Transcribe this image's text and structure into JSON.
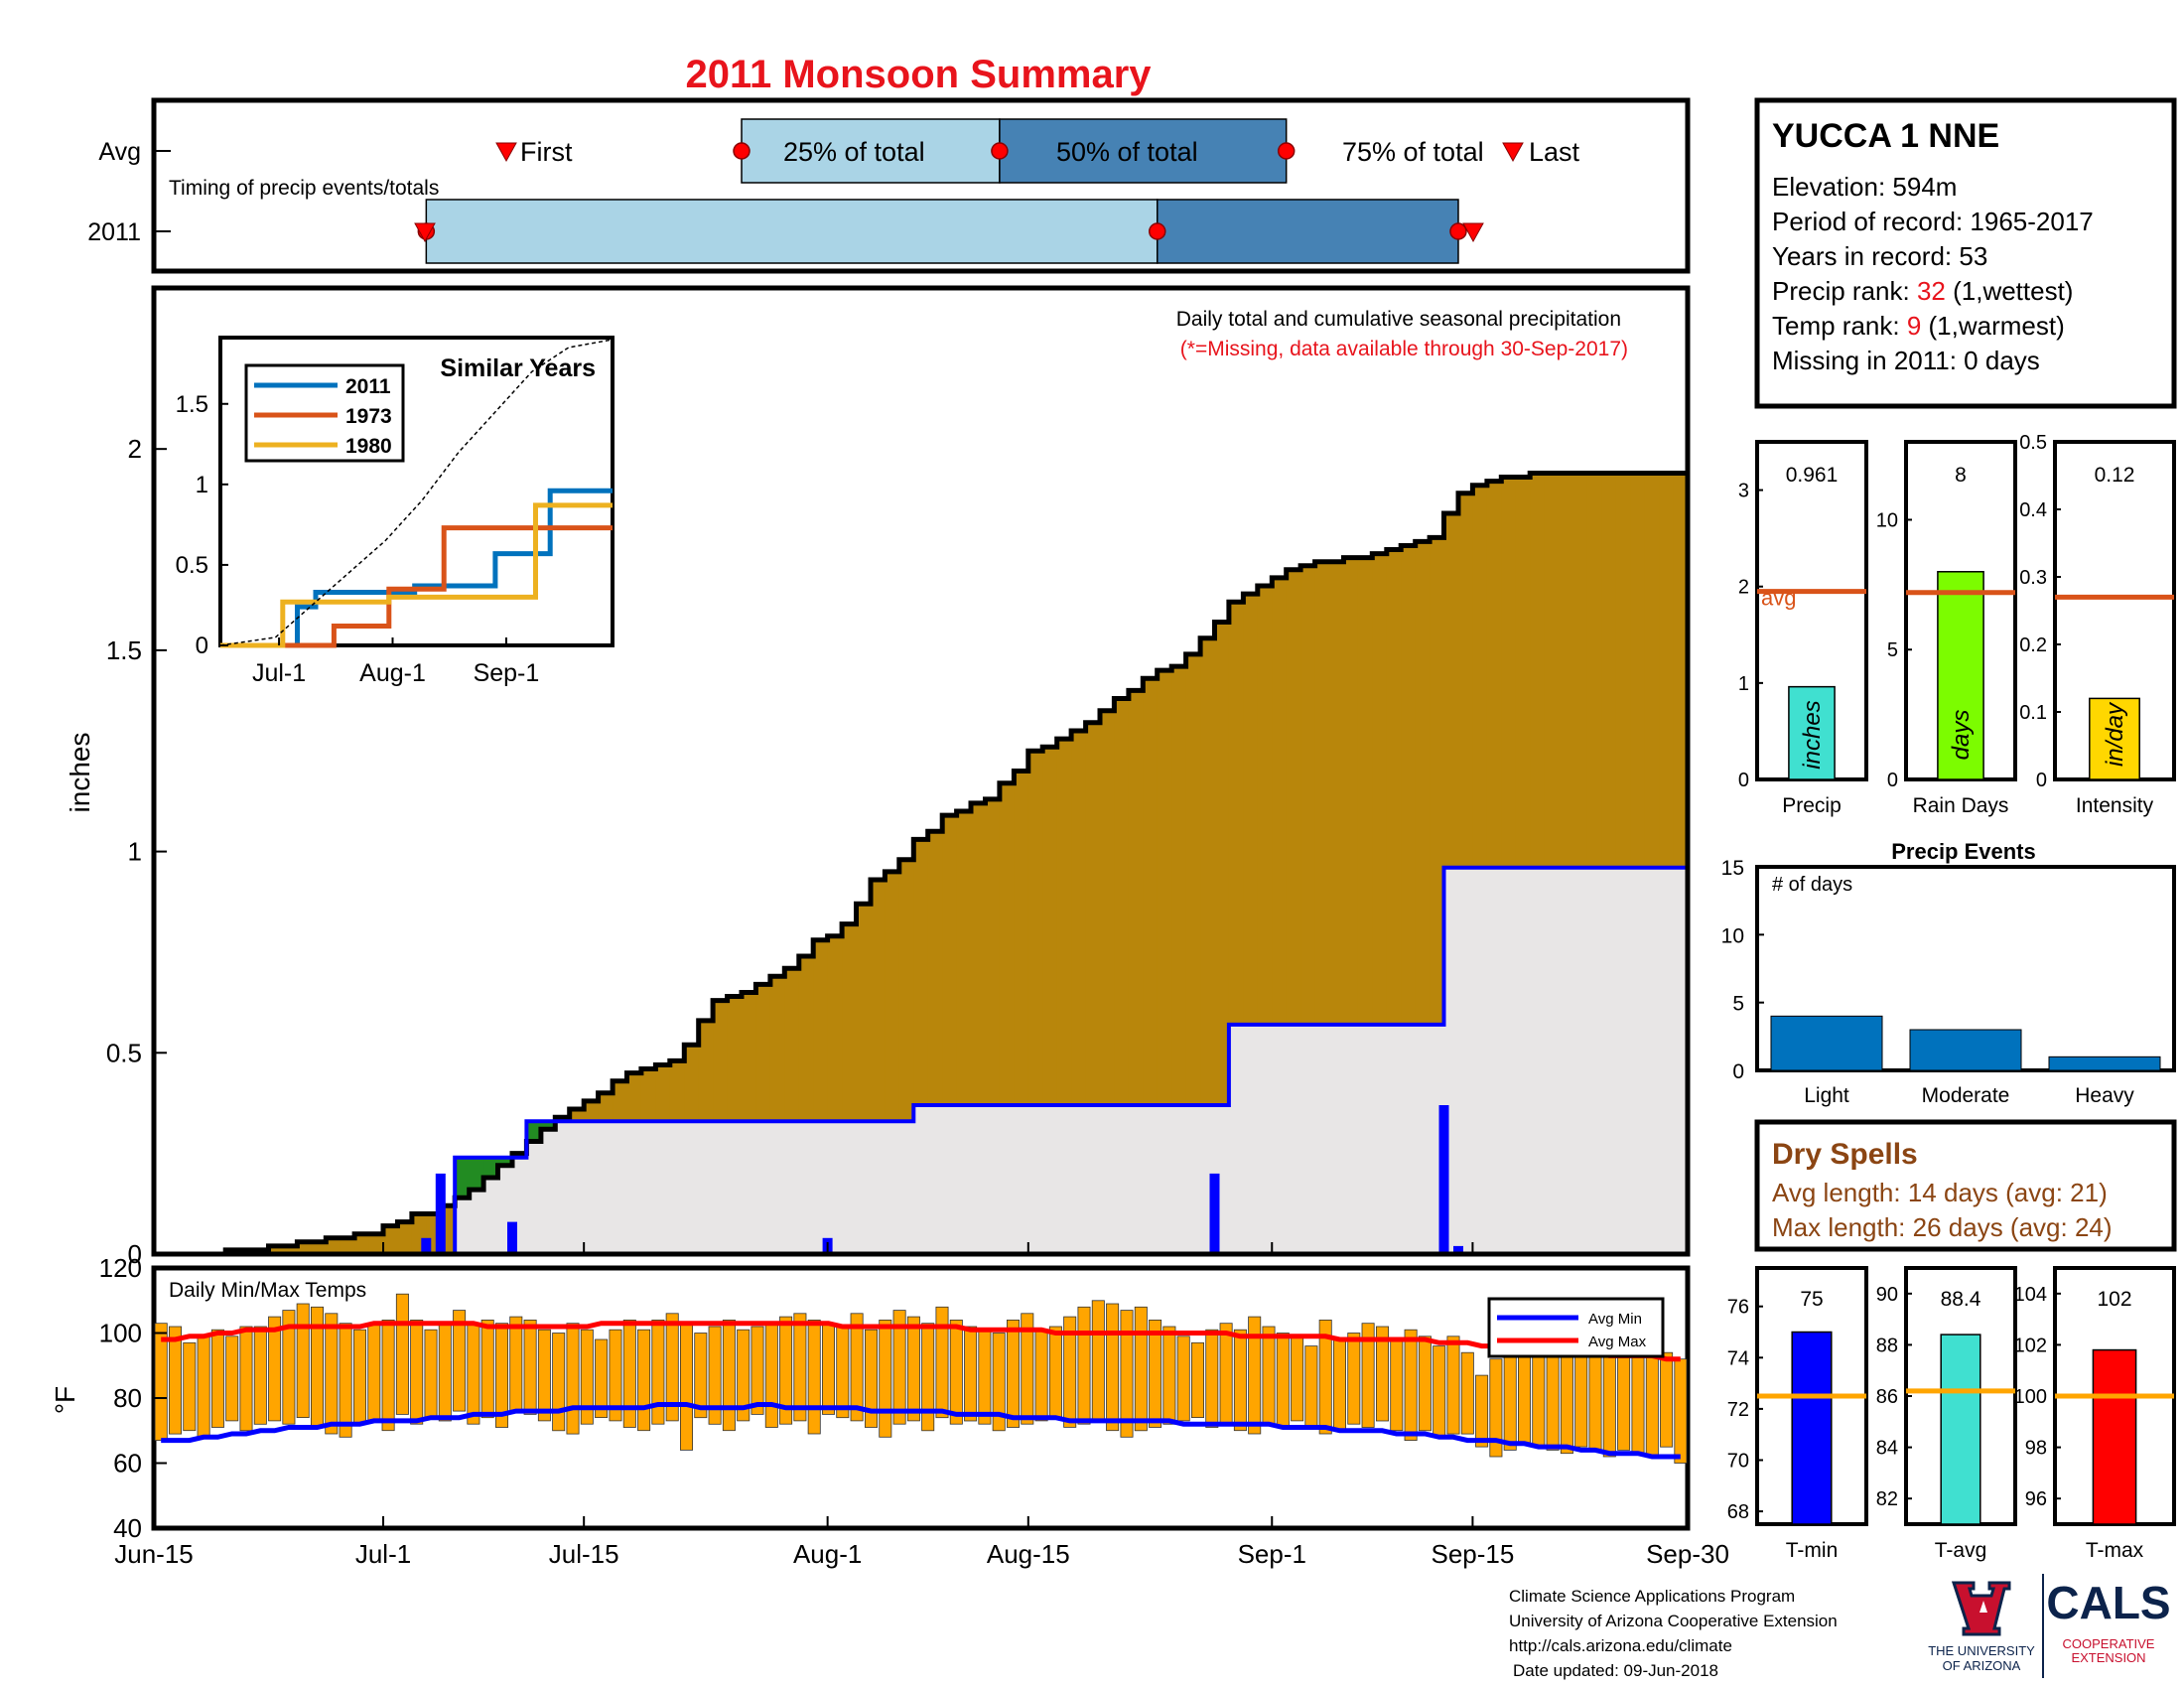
{
  "title": "2011 Monsoon Summary",
  "colors": {
    "title_red": "#e8141c",
    "light_blue": "#aad4e6",
    "dark_blue": "#4682b4",
    "brown": "#b8860b",
    "green": "#228b22",
    "light_gray": "#e8e6e6",
    "precip_blue": "#0000ff",
    "orange": "#ffa500",
    "red": "#ff0000",
    "avg_line": "#d95319",
    "dry_brown": "#8b4513"
  },
  "timing": {
    "note": "Timing of precip events/totals",
    "row_labels": [
      "Avg",
      "2011"
    ],
    "labels": {
      "first": "First",
      "p25": "25% of total",
      "p50": "50% of total",
      "p75": "75% of total",
      "last": "Last"
    },
    "avg": {
      "first": "Jul-3",
      "p25": "Jul-26",
      "p50": "Aug-13",
      "p75": "Sep-2",
      "last": "Sep-16"
    },
    "y2011": {
      "first": "Jul-3",
      "p25": "Jul-4",
      "p50": "Aug-24",
      "p75": "Sep-14",
      "last": "Sep-15"
    }
  },
  "station": {
    "name": "YUCCA 1 NNE",
    "elevation": "Elevation: 594m",
    "period": "Period of record: 1965-2017",
    "years": "Years in record: 53",
    "precip_rank_label": "Precip rank: ",
    "precip_rank_value": "32",
    "precip_rank_suffix": " (1,wettest)",
    "temp_rank_label": "Temp rank: ",
    "temp_rank_value": "9",
    "temp_rank_suffix": " (1,warmest)",
    "missing": "Missing in 2011: 0 days"
  },
  "main_chart": {
    "note1": "Daily total and cumulative seasonal precipitation",
    "note2": "(*=Missing, data available through 30-Sep-2017)",
    "ylabel": "inches",
    "ylim": [
      0,
      2.4
    ],
    "yticks": [
      "0",
      "0.5",
      "1",
      "1.5",
      "2"
    ],
    "xticks": [
      "Jun-15",
      "Jul-1",
      "Jul-15",
      "Aug-1",
      "Aug-15",
      "Sep-1",
      "Sep-15",
      "Sep-30"
    ]
  },
  "chart_data": [
    {
      "type": "area",
      "name": "cumulative-average",
      "x_start": "Jun-15",
      "x_end": "Sep-30",
      "day_numbers_from_jun15": [
        0,
        5,
        8,
        10,
        12,
        14,
        16,
        17,
        18,
        20,
        21,
        22,
        23,
        24,
        25,
        26,
        27,
        28,
        29,
        30,
        31,
        32,
        33,
        34,
        35,
        36,
        37,
        38,
        39,
        40,
        41,
        42,
        43,
        44,
        45,
        46,
        47,
        48,
        49,
        50,
        51,
        52,
        53,
        54,
        55,
        56,
        57,
        58,
        59,
        60,
        61,
        62,
        63,
        64,
        65,
        66,
        67,
        68,
        69,
        70,
        71,
        72,
        73,
        74,
        75,
        76,
        77,
        78,
        79,
        80,
        81,
        82,
        83,
        84,
        85,
        86,
        87,
        88,
        89,
        90,
        91,
        92,
        93,
        94,
        95,
        96,
        97,
        98,
        99,
        100,
        101,
        102,
        103,
        104,
        105,
        106,
        107
      ],
      "values": [
        0,
        0.01,
        0.02,
        0.03,
        0.04,
        0.05,
        0.07,
        0.08,
        0.1,
        0.12,
        0.14,
        0.16,
        0.19,
        0.22,
        0.25,
        0.28,
        0.31,
        0.34,
        0.36,
        0.38,
        0.4,
        0.43,
        0.45,
        0.46,
        0.47,
        0.48,
        0.52,
        0.58,
        0.63,
        0.64,
        0.65,
        0.67,
        0.69,
        0.71,
        0.74,
        0.78,
        0.79,
        0.82,
        0.87,
        0.93,
        0.95,
        0.98,
        1.03,
        1.05,
        1.09,
        1.1,
        1.12,
        1.13,
        1.17,
        1.2,
        1.25,
        1.26,
        1.28,
        1.3,
        1.32,
        1.35,
        1.38,
        1.4,
        1.43,
        1.45,
        1.46,
        1.49,
        1.53,
        1.57,
        1.62,
        1.64,
        1.66,
        1.68,
        1.7,
        1.71,
        1.72,
        1.72,
        1.73,
        1.73,
        1.74,
        1.75,
        1.76,
        1.77,
        1.78,
        1.84,
        1.89,
        1.91,
        1.92,
        1.93,
        1.93,
        1.94,
        1.94,
        1.94,
        1.94,
        1.94,
        1.94,
        1.94,
        1.94,
        1.94,
        1.94,
        1.94,
        1.94
      ]
    },
    {
      "type": "line",
      "name": "cumulative-2011",
      "day_numbers_from_jun15": [
        0,
        20,
        21,
        25,
        26,
        52,
        53,
        74,
        75,
        89,
        90,
        107
      ],
      "values": [
        0,
        0,
        0.24,
        0.24,
        0.33,
        0.33,
        0.37,
        0.37,
        0.57,
        0.57,
        0.96,
        0.96
      ]
    },
    {
      "type": "bar",
      "name": "daily-precip-2011",
      "day_numbers_from_jun15": [
        19,
        20,
        25,
        47,
        74,
        90,
        91
      ],
      "values": [
        0.04,
        0.2,
        0.08,
        0.04,
        0.2,
        0.37,
        0.02
      ]
    },
    {
      "type": "line",
      "name": "similar-years",
      "title": "Similar Years",
      "yticks": [
        "0",
        "0.5",
        "1",
        "1.5",
        "2"
      ],
      "xticks": [
        "Jul-1",
        "Aug-1",
        "Sep-1"
      ],
      "ylim": [
        0,
        2
      ],
      "series": [
        {
          "name": "2011",
          "color": "#0072bd",
          "x": [
            0,
            20,
            21,
            25,
            26,
            52,
            53,
            74,
            75,
            89,
            90,
            107
          ],
          "y": [
            0,
            0,
            0.24,
            0.24,
            0.33,
            0.33,
            0.37,
            0.37,
            0.57,
            0.57,
            0.96,
            0.96
          ]
        },
        {
          "name": "1973",
          "color": "#d95319",
          "x": [
            0,
            30,
            31,
            45,
            46,
            60,
            61,
            107
          ],
          "y": [
            0,
            0,
            0.12,
            0.12,
            0.35,
            0.35,
            0.73,
            0.73
          ]
        },
        {
          "name": "1980",
          "color": "#edb120",
          "x": [
            0,
            16,
            17,
            45,
            46,
            85,
            86,
            107
          ],
          "y": [
            0,
            0,
            0.27,
            0.27,
            0.3,
            0.3,
            0.87,
            0.87
          ]
        },
        {
          "name": "avg",
          "color": "#000000",
          "x": [
            0,
            15,
            25,
            35,
            45,
            55,
            65,
            75,
            85,
            95,
            107
          ],
          "y": [
            0,
            0.05,
            0.25,
            0.45,
            0.65,
            0.9,
            1.2,
            1.45,
            1.7,
            1.85,
            1.94
          ]
        }
      ]
    },
    {
      "type": "bar",
      "name": "precip-summary",
      "panels": [
        {
          "label": "Precip",
          "unit": "inches",
          "value": 0.961,
          "value_label": "0.961",
          "avg": 1.95,
          "ylim": [
            0,
            3.5
          ],
          "yticks": [
            0,
            1,
            2,
            3
          ],
          "color": "#40e0d0",
          "avg_label": "avg"
        },
        {
          "label": "Rain Days",
          "unit": "days",
          "value": 8,
          "value_label": "8",
          "avg": 7.2,
          "ylim": [
            0,
            13
          ],
          "yticks": [
            0,
            5,
            10
          ],
          "color": "#7cfc00"
        },
        {
          "label": "Intensity",
          "unit": "in/day",
          "value": 0.12,
          "value_label": "0.12",
          "avg": 0.27,
          "ylim": [
            0,
            0.5
          ],
          "yticks": [
            0,
            0.1,
            0.2,
            0.3,
            0.4,
            0.5
          ],
          "color": "#ffd700"
        }
      ]
    },
    {
      "type": "bar",
      "name": "precip-events",
      "title": "Precip Events",
      "ylabel_note": "# of days",
      "categories": [
        "Light",
        "Moderate",
        "Heavy"
      ],
      "values": [
        4,
        3,
        1
      ],
      "ylim": [
        0,
        15
      ],
      "yticks": [
        0,
        5,
        10,
        15
      ]
    },
    {
      "type": "bar",
      "name": "daily-temps",
      "title": "Daily Min/Max Temps",
      "ylabel": "°F",
      "ylim": [
        40,
        120
      ],
      "yticks": [
        40,
        60,
        80,
        100,
        120
      ],
      "legend": [
        "Avg Min",
        "Avg Max"
      ],
      "daily_max": [
        103,
        102,
        97,
        99,
        101,
        99,
        102,
        102,
        105,
        107,
        109,
        108,
        106,
        103,
        101,
        103,
        104,
        112,
        104,
        101,
        103,
        107,
        103,
        104,
        103,
        105,
        104,
        101,
        100,
        103,
        101,
        98,
        101,
        104,
        101,
        104,
        106,
        103,
        100,
        102,
        104,
        101,
        102,
        103,
        105,
        106,
        104,
        103,
        102,
        106,
        101,
        104,
        107,
        105,
        103,
        108,
        104,
        102,
        101,
        100,
        104,
        106,
        101,
        102,
        105,
        108,
        110,
        109,
        107,
        108,
        104,
        102,
        99,
        97,
        101,
        103,
        101,
        105,
        102,
        100,
        99,
        96,
        104,
        98,
        100,
        103,
        102,
        98,
        101,
        99,
        96,
        99,
        94,
        87,
        92,
        97,
        99,
        102,
        103,
        100,
        101,
        97,
        96,
        95,
        93,
        95,
        94,
        92
      ],
      "daily_min": [
        67,
        69,
        70,
        68,
        71,
        73,
        70,
        72,
        73,
        72,
        74,
        71,
        69,
        68,
        72,
        73,
        70,
        75,
        72,
        74,
        73,
        76,
        72,
        74,
        71,
        76,
        75,
        73,
        70,
        69,
        72,
        74,
        73,
        71,
        70,
        72,
        73,
        64,
        74,
        72,
        70,
        73,
        75,
        71,
        72,
        73,
        69,
        75,
        74,
        73,
        71,
        68,
        72,
        73,
        70,
        74,
        72,
        73,
        72,
        70,
        71,
        72,
        73,
        74,
        71,
        72,
        73,
        70,
        68,
        70,
        71,
        72,
        73,
        74,
        71,
        72,
        70,
        69,
        72,
        71,
        73,
        71,
        69,
        70,
        72,
        71,
        73,
        70,
        67,
        70,
        68,
        69,
        69,
        65,
        62,
        64,
        66,
        65,
        64,
        63,
        65,
        64,
        62,
        64,
        63,
        62,
        65,
        60
      ],
      "avg_max": [
        98,
        98,
        99,
        99,
        100,
        100,
        101,
        101,
        101,
        102,
        102,
        102,
        102,
        102,
        102,
        103,
        103,
        103,
        103,
        103,
        103,
        103,
        103,
        102,
        102,
        102,
        102,
        102,
        102,
        102,
        102,
        103,
        103,
        103,
        103,
        103,
        103,
        103,
        103,
        103,
        103,
        103,
        103,
        103,
        103,
        103,
        103,
        103,
        102,
        102,
        102,
        102,
        102,
        102,
        102,
        102,
        102,
        101,
        101,
        101,
        101,
        101,
        101,
        100,
        100,
        100,
        100,
        100,
        100,
        100,
        100,
        100,
        100,
        100,
        100,
        100,
        99,
        99,
        99,
        99,
        99,
        99,
        99,
        98,
        98,
        98,
        98,
        98,
        98,
        98,
        97,
        97,
        97,
        96,
        96,
        96,
        96,
        95,
        95,
        95,
        94,
        94,
        93,
        93,
        93,
        93,
        92,
        92
      ],
      "avg_min": [
        67,
        67,
        67,
        68,
        68,
        69,
        69,
        70,
        70,
        71,
        71,
        71,
        72,
        72,
        72,
        73,
        73,
        73,
        73,
        74,
        74,
        74,
        75,
        75,
        75,
        76,
        76,
        76,
        76,
        77,
        77,
        77,
        77,
        77,
        77,
        78,
        78,
        78,
        77,
        77,
        77,
        77,
        78,
        78,
        77,
        77,
        77,
        77,
        77,
        77,
        76,
        76,
        76,
        76,
        76,
        76,
        75,
        75,
        75,
        75,
        74,
        74,
        74,
        74,
        73,
        73,
        73,
        73,
        73,
        73,
        73,
        73,
        72,
        72,
        72,
        72,
        72,
        72,
        72,
        71,
        71,
        71,
        71,
        70,
        70,
        70,
        70,
        69,
        69,
        69,
        68,
        68,
        67,
        67,
        67,
        66,
        66,
        65,
        65,
        65,
        64,
        64,
        63,
        63,
        63,
        62,
        62,
        62
      ]
    },
    {
      "type": "bar",
      "name": "temp-summary",
      "panels": [
        {
          "label": "T-min",
          "value": 75,
          "value_label": "75",
          "avg": 72.5,
          "ylim": [
            67.5,
            77.5
          ],
          "yticks": [
            68,
            70,
            72,
            74,
            76
          ],
          "color": "#0000ff"
        },
        {
          "label": "T-avg",
          "value": 88.4,
          "value_label": "88.4",
          "avg": 86.2,
          "ylim": [
            81,
            91
          ],
          "yticks": [
            82,
            84,
            86,
            88,
            90
          ],
          "color": "#40e0d0"
        },
        {
          "label": "T-max",
          "value": 101.8,
          "value_label": "102",
          "avg": 100,
          "ylim": [
            95,
            105
          ],
          "yticks": [
            96,
            98,
            100,
            102,
            104
          ],
          "color": "#ff0000"
        }
      ]
    }
  ],
  "dry_spells": {
    "title": "Dry Spells",
    "avg_length": "Avg length: 14 days (avg: 21)",
    "max_length": "Max length: 26 days (avg: 24)"
  },
  "footer": {
    "line1": "Climate Science Applications Program",
    "line2": "University of Arizona Cooperative Extension",
    "line3": "http://cals.arizona.edu/climate",
    "line4": "Date updated: 09-Jun-2018"
  },
  "logos": {
    "ua_line1": "THE UNIVERSITY",
    "ua_line2": "OF ARIZONA",
    "cals": "CALS",
    "cals_sub1": "COOPERATIVE",
    "cals_sub2": "EXTENSION"
  }
}
